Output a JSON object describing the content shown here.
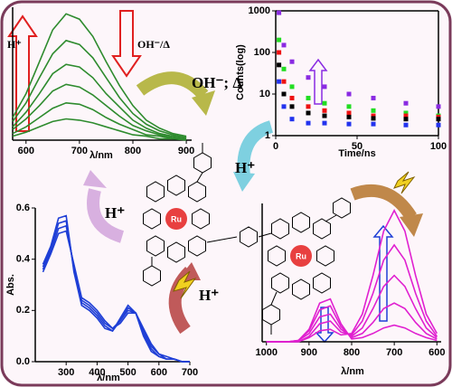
{
  "chart_data": [
    {
      "type": "line",
      "xlabel": "λ/nm",
      "x": [
        575,
        600,
        625,
        650,
        675,
        700,
        725,
        750,
        775,
        800,
        825,
        850,
        875,
        900
      ],
      "xlim": [
        575,
        910
      ],
      "xticks": [
        600,
        700,
        800,
        900
      ],
      "ylim": [
        0,
        1
      ],
      "series": [
        {
          "color": "#2e8b2e",
          "values": [
            0.17,
            0.35,
            0.59,
            0.83,
            0.95,
            0.91,
            0.78,
            0.59,
            0.41,
            0.26,
            0.15,
            0.09,
            0.05,
            0.03
          ]
        },
        {
          "color": "#2e8b2e",
          "values": [
            0.14,
            0.28,
            0.47,
            0.65,
            0.75,
            0.72,
            0.62,
            0.47,
            0.32,
            0.2,
            0.12,
            0.07,
            0.04,
            0.02
          ]
        },
        {
          "color": "#2e8b2e",
          "values": [
            0.1,
            0.21,
            0.35,
            0.5,
            0.57,
            0.55,
            0.47,
            0.35,
            0.25,
            0.15,
            0.09,
            0.05,
            0.03,
            0.02
          ]
        },
        {
          "color": "#2e8b2e",
          "values": [
            0.08,
            0.16,
            0.26,
            0.37,
            0.42,
            0.4,
            0.34,
            0.26,
            0.18,
            0.11,
            0.07,
            0.04,
            0.02,
            0.01
          ]
        },
        {
          "color": "#2e8b2e",
          "values": [
            0.05,
            0.1,
            0.17,
            0.24,
            0.28,
            0.27,
            0.23,
            0.17,
            0.12,
            0.08,
            0.04,
            0.03,
            0.01,
            0.01
          ]
        },
        {
          "color": "#2e8b2e",
          "values": [
            0.03,
            0.06,
            0.1,
            0.14,
            0.16,
            0.15,
            0.13,
            0.1,
            0.07,
            0.04,
            0.03,
            0.01,
            0.01,
            0
          ]
        }
      ]
    },
    {
      "type": "scatter",
      "xlabel": "Time/ns",
      "ylabel": "Counts(log)",
      "yscale": "log",
      "x": [
        2,
        5,
        10,
        20,
        30,
        45,
        60,
        80,
        100
      ],
      "xlim": [
        0,
        100
      ],
      "xticks": [
        0,
        50,
        100
      ],
      "ylim": [
        1,
        1000
      ],
      "yticks": [
        1,
        10,
        100,
        1000
      ],
      "series": [
        {
          "color": "#8a2be2",
          "values": [
            900,
            150,
            60,
            25,
            15,
            10,
            8,
            6,
            5
          ]
        },
        {
          "color": "#22dd22",
          "values": [
            200,
            40,
            15,
            8,
            6,
            5,
            4,
            3.5,
            3
          ]
        },
        {
          "color": "#ee1111",
          "values": [
            100,
            20,
            8,
            5,
            4,
            3.5,
            3,
            3,
            2.8
          ]
        },
        {
          "color": "#000000",
          "values": [
            50,
            10,
            5,
            3.5,
            3,
            2.8,
            2.6,
            2.5,
            2.5
          ]
        },
        {
          "color": "#2233ee",
          "values": [
            20,
            5,
            2.5,
            2,
            2,
            1.9,
            1.9,
            1.8,
            1.8
          ]
        }
      ]
    },
    {
      "type": "line",
      "xlabel": "λ/nm",
      "ylabel": "Abs.",
      "x": [
        225,
        250,
        275,
        300,
        325,
        350,
        375,
        400,
        425,
        450,
        475,
        500,
        525,
        550,
        575,
        600,
        625,
        650,
        675,
        700
      ],
      "xlim": [
        200,
        700
      ],
      "xticks": [
        300,
        400,
        500,
        600,
        700
      ],
      "ylim": [
        0,
        0.6
      ],
      "yticks": [
        {
          "value": 0,
          "label": "0.0"
        },
        {
          "value": 0.2,
          "label": "0.2"
        },
        {
          "value": 0.4,
          "label": "0.4"
        },
        {
          "value": 0.6,
          "label": "0.6"
        }
      ],
      "series": [
        {
          "color": "#1f3fd6",
          "values": [
            0.38,
            0.45,
            0.56,
            0.57,
            0.35,
            0.22,
            0.2,
            0.17,
            0.13,
            0.12,
            0.17,
            0.22,
            0.19,
            0.1,
            0.04,
            0.02,
            0.01,
            0.01,
            0,
            0
          ]
        },
        {
          "color": "#1f3fd6",
          "values": [
            0.37,
            0.44,
            0.54,
            0.55,
            0.36,
            0.23,
            0.21,
            0.18,
            0.14,
            0.12,
            0.16,
            0.21,
            0.19,
            0.11,
            0.05,
            0.02,
            0.01,
            0.01,
            0,
            0
          ]
        },
        {
          "color": "#1f3fd6",
          "values": [
            0.36,
            0.43,
            0.52,
            0.53,
            0.37,
            0.24,
            0.22,
            0.19,
            0.15,
            0.13,
            0.16,
            0.2,
            0.19,
            0.12,
            0.06,
            0.03,
            0.01,
            0.01,
            0,
            0
          ]
        },
        {
          "color": "#1f3fd6",
          "values": [
            0.35,
            0.42,
            0.5,
            0.51,
            0.38,
            0.25,
            0.23,
            0.2,
            0.16,
            0.13,
            0.15,
            0.19,
            0.19,
            0.13,
            0.07,
            0.03,
            0.02,
            0.01,
            0,
            0
          ]
        }
      ]
    },
    {
      "type": "line",
      "xlabel": "λ/nm",
      "x": [
        1000,
        975,
        950,
        925,
        900,
        875,
        850,
        825,
        800,
        775,
        750,
        725,
        700,
        675,
        650,
        625,
        600
      ],
      "xlim": [
        1010,
        590
      ],
      "xticks": [
        1000,
        900,
        800,
        700,
        600
      ],
      "ylim": [
        0,
        1
      ],
      "series": [
        {
          "color": "#e020d0",
          "values": [
            0,
            0,
            0,
            0,
            0.03,
            0.08,
            0.09,
            0.05,
            0.06,
            0.2,
            0.48,
            0.8,
            0.95,
            0.8,
            0.48,
            0.2,
            0.06
          ]
        },
        {
          "color": "#e020d0",
          "values": [
            0,
            0,
            0,
            0,
            0.04,
            0.13,
            0.15,
            0.07,
            0.05,
            0.15,
            0.35,
            0.59,
            0.7,
            0.59,
            0.35,
            0.15,
            0.04
          ]
        },
        {
          "color": "#e020d0",
          "values": [
            0,
            0,
            0,
            0.01,
            0.06,
            0.18,
            0.2,
            0.09,
            0.04,
            0.1,
            0.24,
            0.4,
            0.48,
            0.4,
            0.24,
            0.1,
            0.03
          ]
        },
        {
          "color": "#e020d0",
          "values": [
            0,
            0,
            0,
            0.01,
            0.08,
            0.23,
            0.26,
            0.11,
            0.03,
            0.06,
            0.14,
            0.24,
            0.28,
            0.24,
            0.14,
            0.06,
            0.02
          ]
        },
        {
          "color": "#e020d0",
          "values": [
            0,
            0,
            0,
            0.01,
            0.09,
            0.28,
            0.31,
            0.13,
            0.02,
            0.03,
            0.06,
            0.1,
            0.12,
            0.1,
            0.06,
            0.03,
            0.01
          ]
        }
      ]
    }
  ],
  "annotations": {
    "top_left_up": "H⁺",
    "top_left_down": "OH⁻/Δ",
    "center_top": "OH⁻; Δ",
    "center_right": "H⁺",
    "left": "H⁺",
    "bottom_center": "H⁺"
  },
  "molecule": {
    "metal_labels": [
      "Ru",
      "Ru"
    ]
  }
}
